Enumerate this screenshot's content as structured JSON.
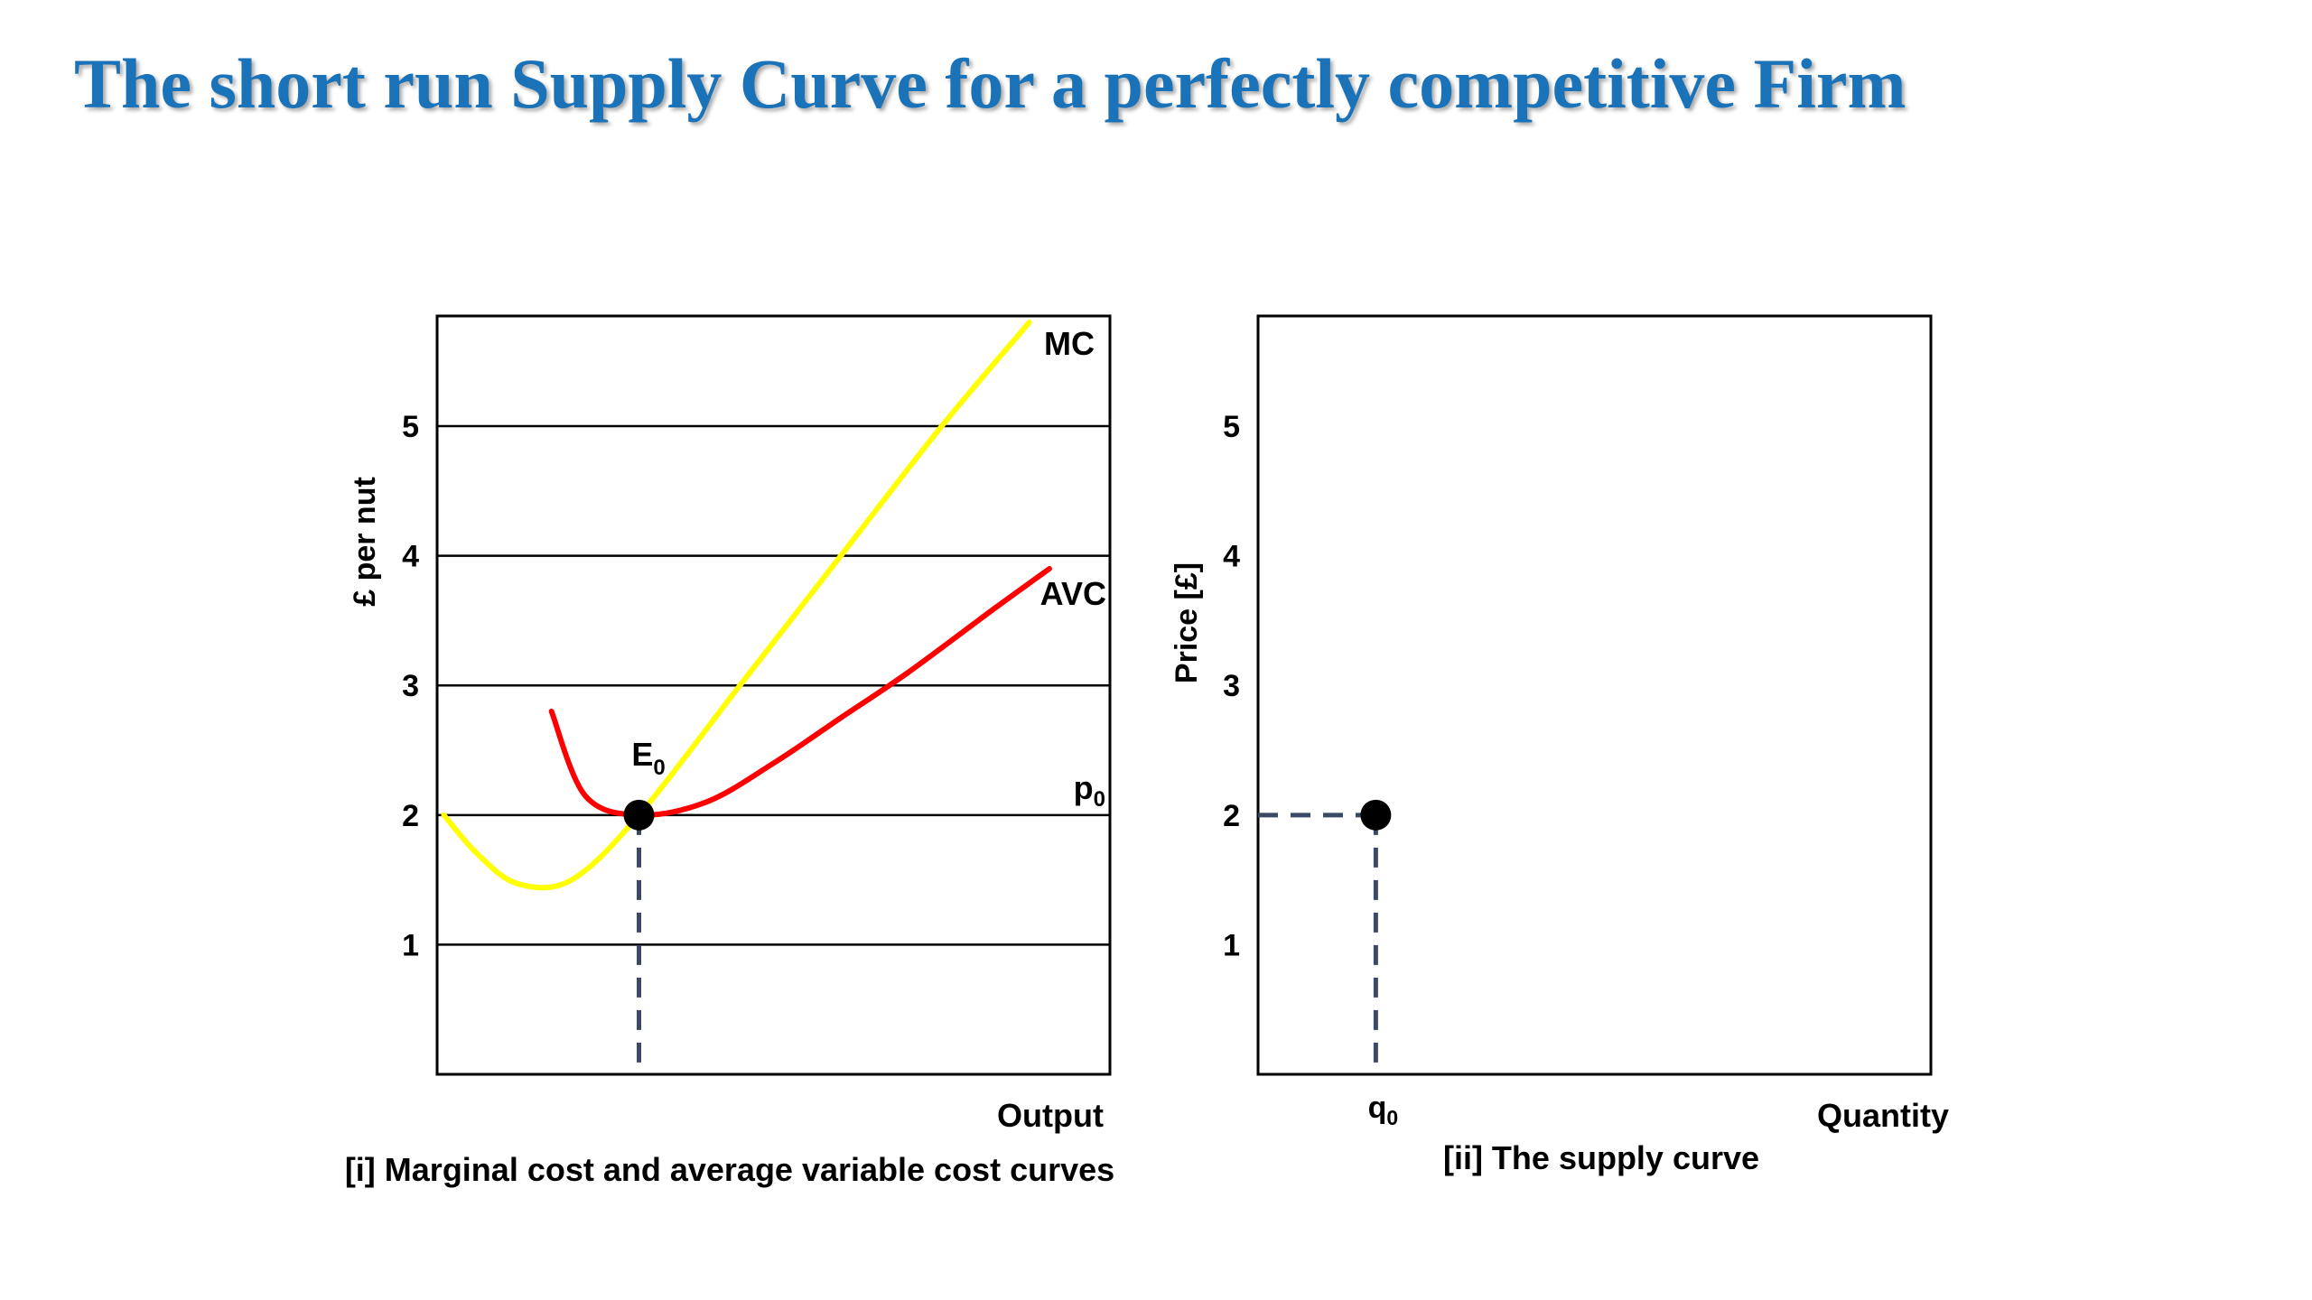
{
  "title": "The short run Supply Curve for a perfectly competitive Firm",
  "colors": {
    "title": "#1a72b8",
    "mc_curve": "#ffff00",
    "avc_curve": "#ff0000",
    "dashed": "#3a4a66",
    "axis": "#000000"
  },
  "chart_data": [
    {
      "type": "line",
      "caption": "[i] Marginal cost and average variable cost curves",
      "xlabel": "Output",
      "ylabel": "£ per nut",
      "ylim": [
        0,
        5.85
      ],
      "y_ticks": [
        "1",
        "2",
        "3",
        "4",
        "5"
      ],
      "grid": true,
      "series": [
        {
          "name": "MC",
          "color": "#ffff00",
          "x": [
            0.01,
            0.06,
            0.12,
            0.2,
            0.3,
            0.45,
            0.6,
            0.75,
            0.88
          ],
          "y": [
            2.0,
            1.7,
            1.47,
            1.5,
            2.0,
            3.0,
            4.0,
            5.0,
            5.8
          ]
        },
        {
          "name": "AVC",
          "color": "#ff0000",
          "x": [
            0.17,
            0.22,
            0.3,
            0.4,
            0.5,
            0.6,
            0.7,
            0.83,
            0.91
          ],
          "y": [
            2.8,
            2.15,
            2.0,
            2.1,
            2.4,
            2.75,
            3.1,
            3.6,
            3.9
          ]
        }
      ],
      "point": {
        "label": "E0",
        "label_main": "E",
        "label_sub": "0",
        "x": 0.3,
        "y": 2.0
      },
      "price_line": {
        "label_main": "p",
        "label_sub": "0",
        "y": 2.0
      }
    },
    {
      "type": "scatter",
      "caption": "[ii] The supply curve",
      "xlabel": "Quantity",
      "ylabel": "Price [£]",
      "ylim": [
        0,
        5.85
      ],
      "y_ticks": [
        "1",
        "2",
        "3",
        "4",
        "5"
      ],
      "grid": false,
      "point": {
        "x_label_main": "q",
        "x_label_sub": "0",
        "x": 0.175,
        "y": 2.0
      }
    }
  ]
}
